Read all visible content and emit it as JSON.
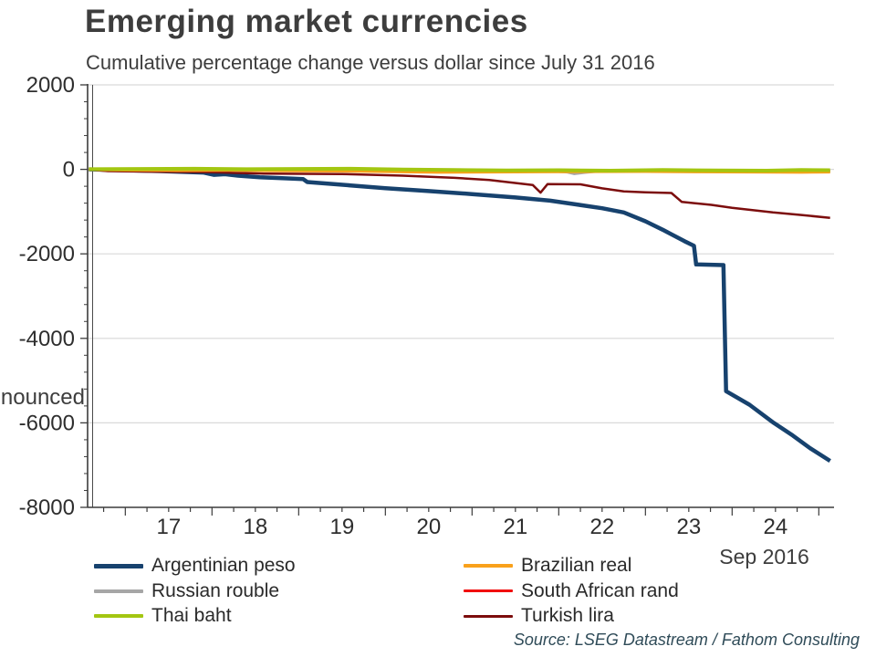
{
  "header": {
    "title": "Emerging market currencies",
    "subtitle": "Cumulative percentage change versus dollar since July 31 2016"
  },
  "plot": {
    "clipped_annotation": "nounced",
    "x_axis_end_label": "Sep 2016"
  },
  "footer": {
    "source": "Source: LSEG Datastream / Fathom Consulting"
  },
  "chart_data": {
    "type": "line",
    "title": "Emerging market currencies",
    "subtitle": "Cumulative percentage change versus dollar since July 31 2016",
    "xlabel": "",
    "ylabel": "",
    "ylim": [
      -8000,
      2000
    ],
    "yticks": [
      2000,
      0,
      -2000,
      -4000,
      -6000,
      -8000
    ],
    "y_minor_step": 400,
    "xlim_years": [
      2016.565,
      2025.18
    ],
    "xtick_years": [
      2017,
      2018,
      2019,
      2020,
      2021,
      2022,
      2023,
      2024
    ],
    "xtick_labels": [
      "17",
      "18",
      "19",
      "20",
      "21",
      "22",
      "23",
      "24"
    ],
    "x_minor_step_years": 0.25,
    "x_end_label": "Sep 2016",
    "grid": "horizontal",
    "grid_color": "#d9d9d9",
    "axis_color": "#3c3c3c",
    "tick_label_color": "#2e2e2e",
    "legend_position": "bottom",
    "draw_order": [
      0,
      5,
      1,
      4,
      3,
      2
    ],
    "series": [
      {
        "name": "Argentinian peso",
        "color": "#17426e",
        "width": 4.5,
        "legend_column": 0,
        "points": [
          [
            2016.58,
            0
          ],
          [
            2016.9,
            -15
          ],
          [
            2017.4,
            -40
          ],
          [
            2017.9,
            -75
          ],
          [
            2018.02,
            -130
          ],
          [
            2018.15,
            -115
          ],
          [
            2018.3,
            -150
          ],
          [
            2018.55,
            -185
          ],
          [
            2018.9,
            -215
          ],
          [
            2019.05,
            -230
          ],
          [
            2019.1,
            -300
          ],
          [
            2019.6,
            -380
          ],
          [
            2020.0,
            -445
          ],
          [
            2020.5,
            -515
          ],
          [
            2021.0,
            -585
          ],
          [
            2021.5,
            -665
          ],
          [
            2021.9,
            -740
          ],
          [
            2022.2,
            -830
          ],
          [
            2022.5,
            -920
          ],
          [
            2022.75,
            -1020
          ],
          [
            2023.0,
            -1230
          ],
          [
            2023.2,
            -1430
          ],
          [
            2023.45,
            -1700
          ],
          [
            2023.56,
            -1810
          ],
          [
            2023.585,
            -2250
          ],
          [
            2023.9,
            -2265
          ],
          [
            2023.93,
            -5250
          ],
          [
            2024.2,
            -5570
          ],
          [
            2024.48,
            -6000
          ],
          [
            2024.7,
            -6300
          ],
          [
            2024.9,
            -6600
          ],
          [
            2025.13,
            -6900
          ]
        ]
      },
      {
        "name": "Russian rouble",
        "color": "#a6a6a6",
        "width": 3.5,
        "legend_column": 0,
        "points": [
          [
            2016.58,
            0
          ],
          [
            2017.2,
            -5
          ],
          [
            2017.8,
            -10
          ],
          [
            2018.4,
            -15
          ],
          [
            2019.0,
            -15
          ],
          [
            2019.6,
            -20
          ],
          [
            2020.2,
            -30
          ],
          [
            2020.8,
            -30
          ],
          [
            2021.4,
            -30
          ],
          [
            2021.9,
            -35
          ],
          [
            2022.1,
            -60
          ],
          [
            2022.18,
            -100
          ],
          [
            2022.3,
            -70
          ],
          [
            2022.45,
            -40
          ],
          [
            2023.0,
            -45
          ],
          [
            2023.6,
            -50
          ],
          [
            2024.2,
            -50
          ],
          [
            2024.8,
            -55
          ],
          [
            2025.13,
            -50
          ]
        ]
      },
      {
        "name": "Thai baht",
        "color": "#a3c611",
        "width": 4,
        "legend_column": 0,
        "points": [
          [
            2016.58,
            5
          ],
          [
            2017.2,
            10
          ],
          [
            2017.8,
            15
          ],
          [
            2018.4,
            5
          ],
          [
            2019.0,
            10
          ],
          [
            2019.6,
            15
          ],
          [
            2020.2,
            -5
          ],
          [
            2020.8,
            -15
          ],
          [
            2021.4,
            -25
          ],
          [
            2022.0,
            -20
          ],
          [
            2022.6,
            -30
          ],
          [
            2023.2,
            -15
          ],
          [
            2023.8,
            -25
          ],
          [
            2024.4,
            -30
          ],
          [
            2024.8,
            -15
          ],
          [
            2025.13,
            -20
          ]
        ]
      },
      {
        "name": "Brazilian real",
        "color": "#f9a11b",
        "width": 3.5,
        "legend_column": 1,
        "points": [
          [
            2016.58,
            0
          ],
          [
            2017.0,
            -15
          ],
          [
            2017.6,
            -25
          ],
          [
            2018.2,
            -20
          ],
          [
            2018.8,
            -30
          ],
          [
            2019.4,
            -35
          ],
          [
            2020.0,
            -50
          ],
          [
            2020.6,
            -65
          ],
          [
            2021.2,
            -60
          ],
          [
            2021.8,
            -55
          ],
          [
            2022.4,
            -50
          ],
          [
            2023.0,
            -45
          ],
          [
            2023.6,
            -55
          ],
          [
            2024.2,
            -60
          ],
          [
            2024.8,
            -65
          ],
          [
            2025.13,
            -60
          ]
        ]
      },
      {
        "name": "South African rand",
        "color": "#f10e0e",
        "width": 3,
        "legend_column": 1,
        "points": [
          [
            2016.58,
            0
          ],
          [
            2017.2,
            -10
          ],
          [
            2017.8,
            -5
          ],
          [
            2018.4,
            -15
          ],
          [
            2019.0,
            -20
          ],
          [
            2019.6,
            -25
          ],
          [
            2020.2,
            -45
          ],
          [
            2020.8,
            -35
          ],
          [
            2021.4,
            -30
          ],
          [
            2022.0,
            -35
          ],
          [
            2022.6,
            -45
          ],
          [
            2023.2,
            -50
          ],
          [
            2023.8,
            -40
          ],
          [
            2024.4,
            -35
          ],
          [
            2025.13,
            -40
          ]
        ]
      },
      {
        "name": "Turkish lira",
        "color": "#7c0d0d",
        "width": 2.5,
        "legend_column": 1,
        "points": [
          [
            2016.58,
            -5
          ],
          [
            2016.8,
            -40
          ],
          [
            2017.3,
            -55
          ],
          [
            2018.0,
            -70
          ],
          [
            2018.6,
            -100
          ],
          [
            2019.5,
            -110
          ],
          [
            2020.2,
            -150
          ],
          [
            2020.8,
            -200
          ],
          [
            2021.2,
            -250
          ],
          [
            2021.7,
            -370
          ],
          [
            2021.79,
            -550
          ],
          [
            2021.87,
            -350
          ],
          [
            2022.25,
            -355
          ],
          [
            2022.5,
            -450
          ],
          [
            2022.75,
            -520
          ],
          [
            2023.0,
            -545
          ],
          [
            2023.3,
            -560
          ],
          [
            2023.42,
            -770
          ],
          [
            2023.76,
            -840
          ],
          [
            2024.0,
            -910
          ],
          [
            2024.47,
            -1020
          ],
          [
            2024.8,
            -1080
          ],
          [
            2025.13,
            -1150
          ]
        ]
      }
    ]
  }
}
